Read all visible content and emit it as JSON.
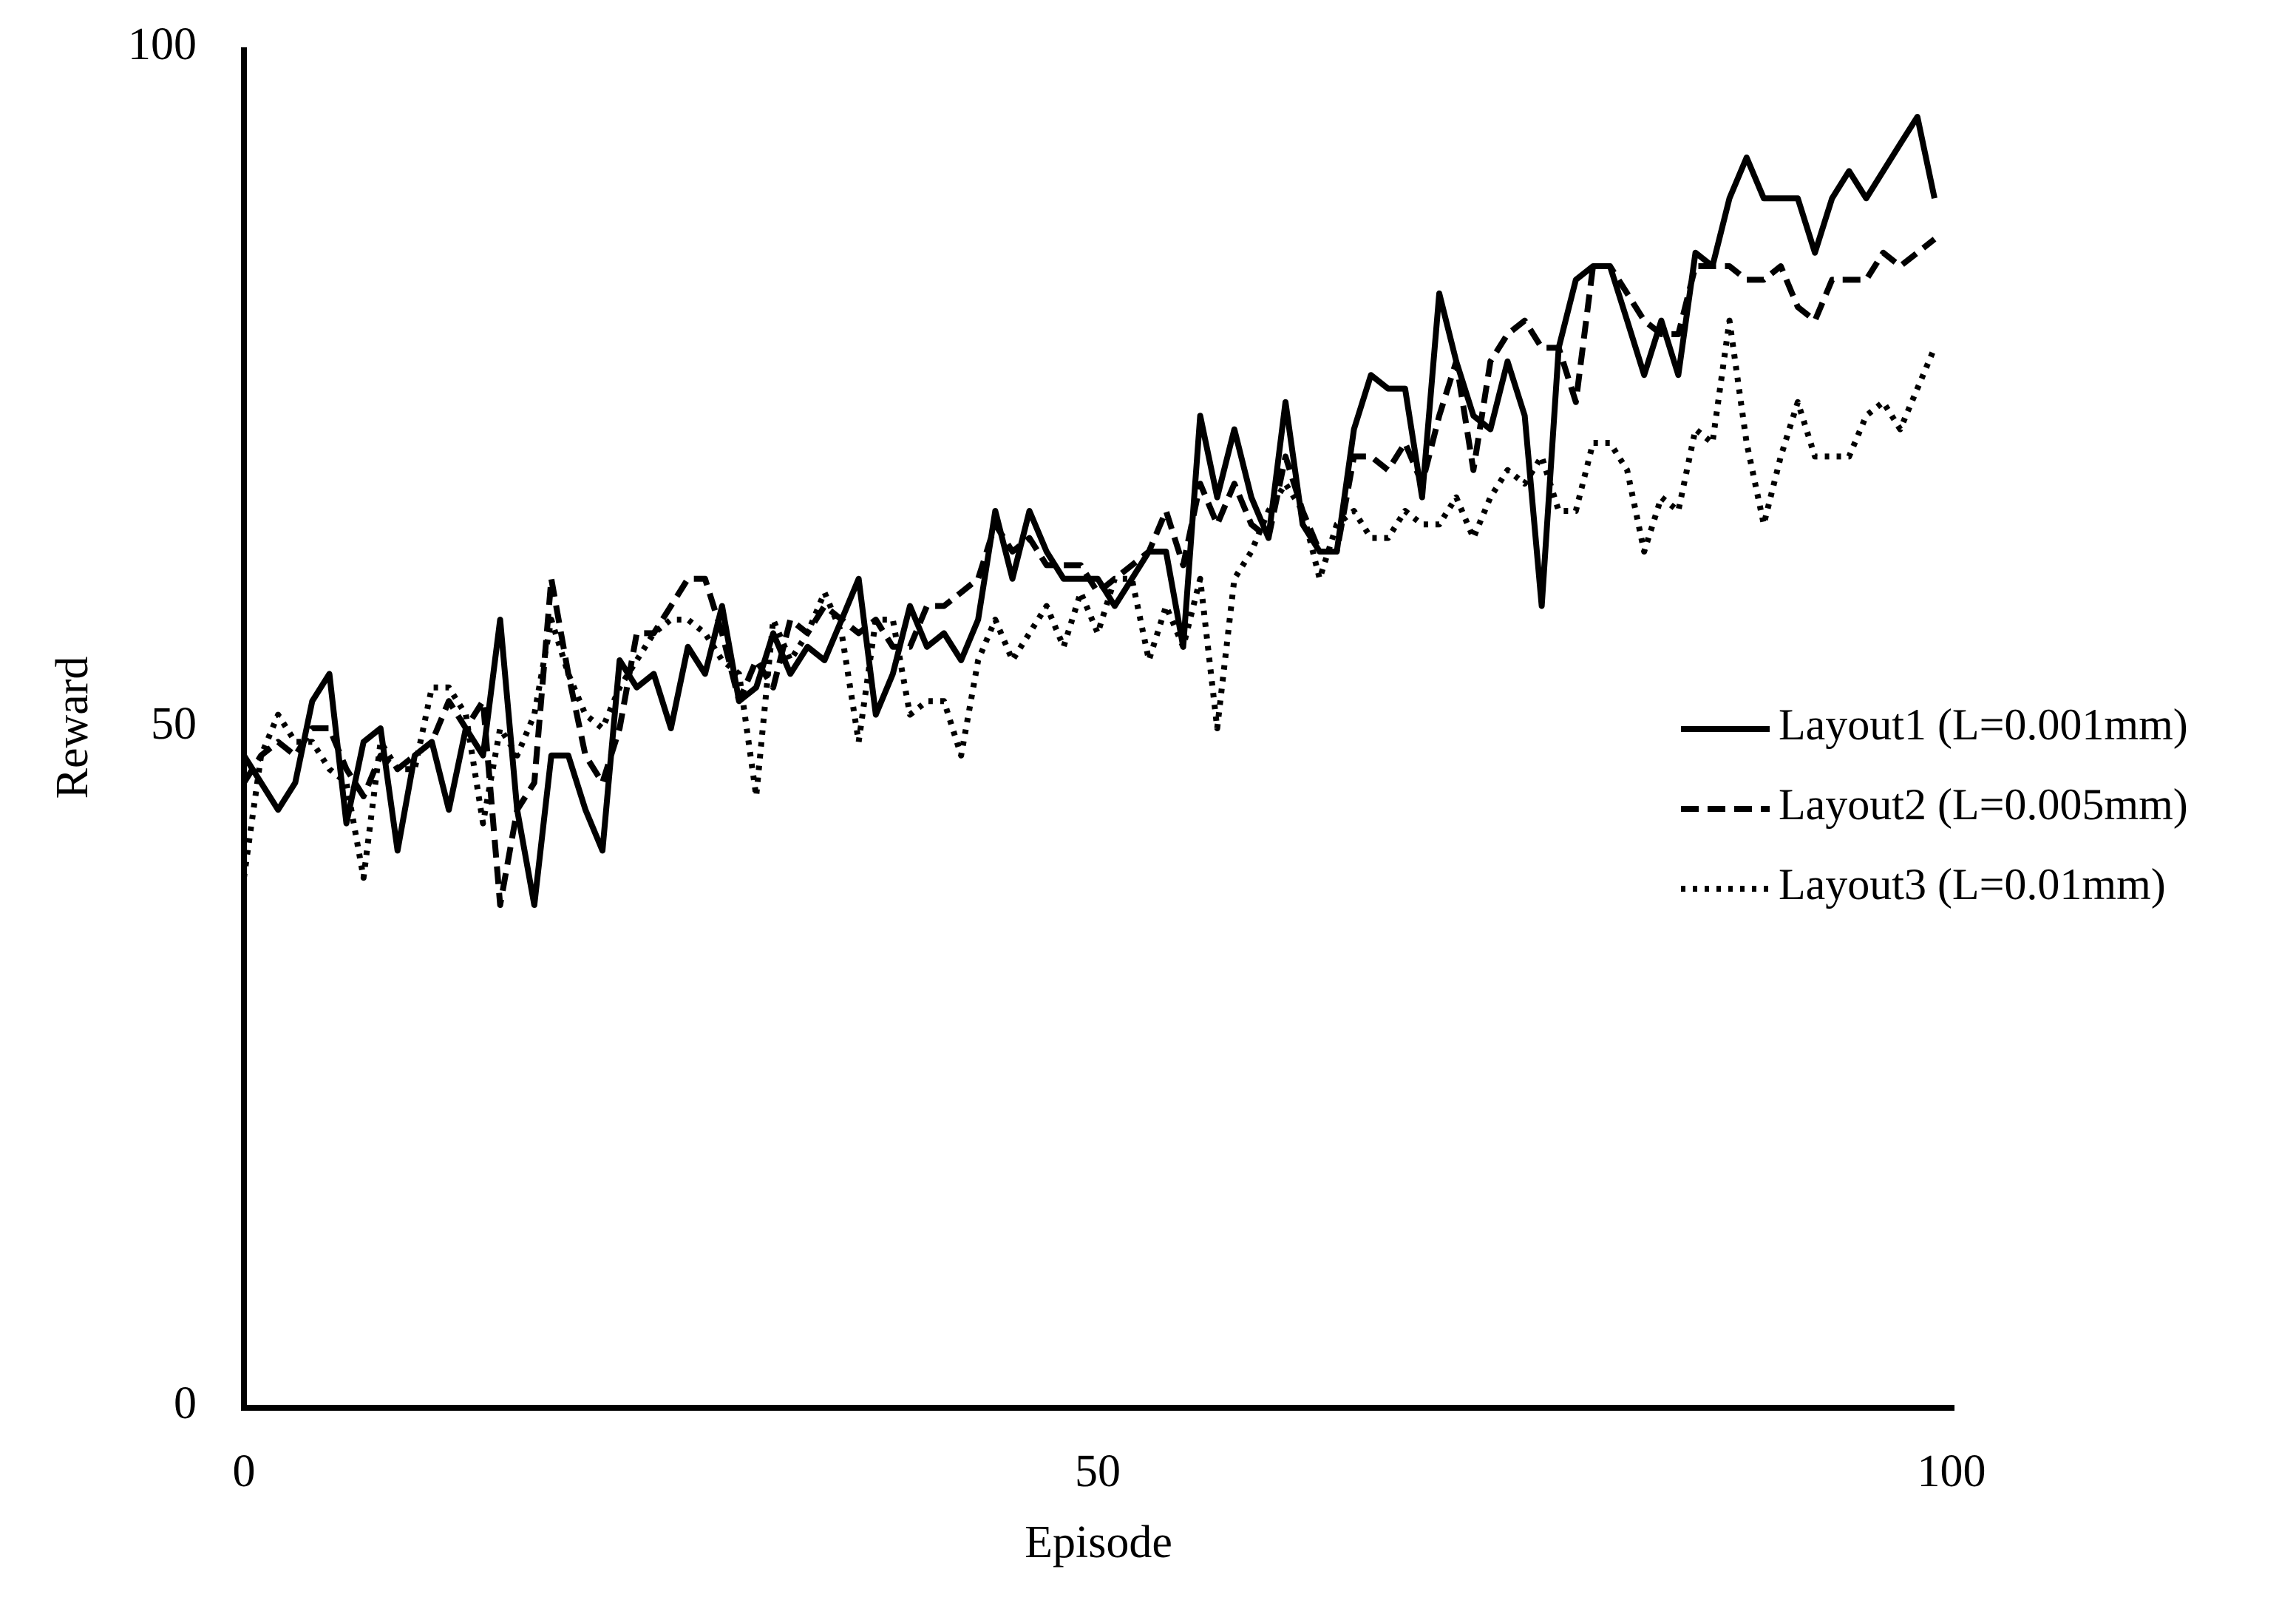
{
  "chart_data": {
    "type": "line",
    "x_label": "Episode",
    "y_label": "Reward",
    "x": [
      0,
      1,
      2,
      3,
      4,
      5,
      6,
      7,
      8,
      9,
      10,
      11,
      12,
      13,
      14,
      15,
      16,
      17,
      18,
      19,
      20,
      21,
      22,
      23,
      24,
      25,
      26,
      27,
      28,
      29,
      30,
      31,
      32,
      33,
      34,
      35,
      36,
      37,
      38,
      39,
      40,
      41,
      42,
      43,
      44,
      45,
      46,
      47,
      48,
      49,
      50,
      51,
      52,
      53,
      54,
      55,
      56,
      57,
      58,
      59,
      60,
      61,
      62,
      63,
      64,
      65,
      66,
      67,
      68,
      69,
      70,
      71,
      72,
      73,
      74,
      75,
      76,
      77,
      78,
      79,
      80,
      81,
      82,
      83,
      84,
      85,
      86,
      87,
      88,
      89,
      90,
      91,
      92,
      93,
      94,
      95,
      96,
      97,
      98,
      99
    ],
    "series": [
      {
        "name": "Layout1 (L=0.001mm)",
        "color": "#000000",
        "style": "solid",
        "values": [
          48,
          46,
          44,
          46,
          52,
          54,
          43,
          49,
          50,
          41,
          48,
          49,
          44,
          50,
          48,
          58,
          44,
          37,
          48,
          48,
          44,
          41,
          55,
          53,
          54,
          50,
          56,
          54,
          59,
          52,
          53,
          57,
          54,
          56,
          55,
          58,
          61,
          51,
          54,
          59,
          56,
          57,
          55,
          58,
          66,
          61,
          66,
          63,
          61,
          61,
          61,
          59,
          61,
          63,
          63,
          56,
          73,
          67,
          72,
          67,
          64,
          74,
          65,
          63,
          63,
          72,
          76,
          75,
          75,
          67,
          82,
          77,
          73,
          72,
          77,
          73,
          59,
          78,
          83,
          84,
          84,
          80,
          76,
          80,
          76,
          85,
          84,
          89,
          92,
          89,
          89,
          89,
          85,
          89,
          91,
          89,
          91,
          93,
          95,
          89
        ]
      },
      {
        "name": "Layout2 (L=0.005mm)",
        "color": "#000000",
        "style": "dashed",
        "values": [
          46,
          48,
          49,
          48,
          50,
          50,
          47,
          45,
          48,
          47,
          48,
          49,
          52,
          50,
          52,
          37,
          44,
          46,
          61,
          54,
          48,
          46,
          50,
          57,
          57,
          59,
          61,
          61,
          57,
          52,
          55,
          53,
          58,
          57,
          59,
          58,
          57,
          58,
          56,
          56,
          59,
          59,
          60,
          61,
          65,
          63,
          64,
          62,
          62,
          62,
          60,
          61,
          62,
          63,
          66,
          62,
          68,
          65,
          68,
          65,
          64,
          70,
          66,
          63,
          63,
          70,
          70,
          69,
          71,
          68,
          73,
          77,
          69,
          77,
          79,
          80,
          78,
          78,
          74,
          84,
          84,
          82,
          80,
          79,
          79,
          84,
          84,
          84,
          83,
          83,
          84,
          81,
          80,
          83,
          83,
          83,
          85,
          84,
          85,
          86
        ]
      },
      {
        "name": "Layout3 (L=0.01mm)",
        "color": "#000000",
        "style": "dotted",
        "values": [
          39,
          48,
          51,
          49,
          49,
          47,
          46,
          39,
          49,
          47,
          47,
          53,
          53,
          51,
          43,
          50,
          48,
          51,
          58,
          54,
          51,
          50,
          53,
          55,
          57,
          58,
          58,
          57,
          55,
          54,
          45,
          58,
          55,
          57,
          60,
          57,
          49,
          58,
          58,
          51,
          52,
          52,
          48,
          55,
          58,
          55,
          57,
          59,
          56,
          60,
          57,
          61,
          61,
          55,
          59,
          56,
          61,
          50,
          61,
          63,
          66,
          68,
          66,
          61,
          65,
          66,
          64,
          64,
          66,
          65,
          65,
          67,
          64,
          67,
          69,
          68,
          70,
          66,
          66,
          71,
          71,
          69,
          63,
          67,
          66,
          72,
          71,
          80,
          71,
          65,
          70,
          74,
          70,
          70,
          70,
          73,
          74,
          72,
          75,
          78
        ]
      }
    ],
    "xlim": [
      0,
      100
    ],
    "xticks": [
      0,
      50,
      100
    ],
    "ylim": [
      0,
      100
    ],
    "yticks": [
      0,
      50,
      100
    ],
    "legend": "right"
  }
}
